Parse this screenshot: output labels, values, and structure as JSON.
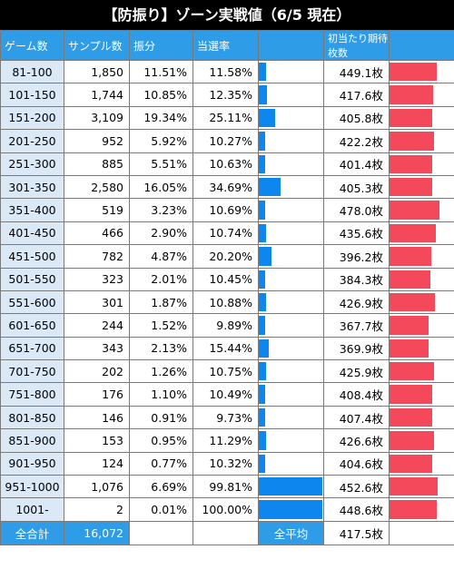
{
  "title": "【防振り】ゾーン実戦値（6/5 現在）",
  "headers": [
    "ゲーム数",
    "サンプル数",
    "振分",
    "当選率",
    "",
    "初当たり期待枚数",
    ""
  ],
  "colors": {
    "header_bg": "#2f9ce8",
    "zone_bg": "#dbe9f7",
    "rate_bar": "#0d86ee",
    "payout_bar": "#f3495a"
  },
  "rows": [
    {
      "zone": "81-100",
      "samples": "1,850",
      "ratio": "11.51%",
      "rate": "11.58%",
      "rate_value": 11.58,
      "payout": "449.1枚",
      "payout_value": 449.1
    },
    {
      "zone": "101-150",
      "samples": "1,744",
      "ratio": "10.85%",
      "rate": "12.35%",
      "rate_value": 12.35,
      "payout": "417.6枚",
      "payout_value": 417.6
    },
    {
      "zone": "151-200",
      "samples": "3,109",
      "ratio": "19.34%",
      "rate": "25.11%",
      "rate_value": 25.11,
      "payout": "405.8枚",
      "payout_value": 405.8
    },
    {
      "zone": "201-250",
      "samples": "952",
      "ratio": "5.92%",
      "rate": "10.27%",
      "rate_value": 10.27,
      "payout": "422.2枚",
      "payout_value": 422.2
    },
    {
      "zone": "251-300",
      "samples": "885",
      "ratio": "5.51%",
      "rate": "10.63%",
      "rate_value": 10.63,
      "payout": "401.4枚",
      "payout_value": 401.4
    },
    {
      "zone": "301-350",
      "samples": "2,580",
      "ratio": "16.05%",
      "rate": "34.69%",
      "rate_value": 34.69,
      "payout": "405.3枚",
      "payout_value": 405.3
    },
    {
      "zone": "351-400",
      "samples": "519",
      "ratio": "3.23%",
      "rate": "10.69%",
      "rate_value": 10.69,
      "payout": "478.0枚",
      "payout_value": 478.0
    },
    {
      "zone": "401-450",
      "samples": "466",
      "ratio": "2.90%",
      "rate": "10.74%",
      "rate_value": 10.74,
      "payout": "435.6枚",
      "payout_value": 435.6
    },
    {
      "zone": "451-500",
      "samples": "782",
      "ratio": "4.87%",
      "rate": "20.20%",
      "rate_value": 20.2,
      "payout": "396.2枚",
      "payout_value": 396.2
    },
    {
      "zone": "501-550",
      "samples": "323",
      "ratio": "2.01%",
      "rate": "10.45%",
      "rate_value": 10.45,
      "payout": "384.3枚",
      "payout_value": 384.3
    },
    {
      "zone": "551-600",
      "samples": "301",
      "ratio": "1.87%",
      "rate": "10.88%",
      "rate_value": 10.88,
      "payout": "426.9枚",
      "payout_value": 426.9
    },
    {
      "zone": "601-650",
      "samples": "244",
      "ratio": "1.52%",
      "rate": "9.89%",
      "rate_value": 9.89,
      "payout": "367.7枚",
      "payout_value": 367.7
    },
    {
      "zone": "651-700",
      "samples": "343",
      "ratio": "2.13%",
      "rate": "15.44%",
      "rate_value": 15.44,
      "payout": "369.9枚",
      "payout_value": 369.9
    },
    {
      "zone": "701-750",
      "samples": "202",
      "ratio": "1.26%",
      "rate": "10.75%",
      "rate_value": 10.75,
      "payout": "425.9枚",
      "payout_value": 425.9
    },
    {
      "zone": "751-800",
      "samples": "176",
      "ratio": "1.10%",
      "rate": "10.49%",
      "rate_value": 10.49,
      "payout": "408.4枚",
      "payout_value": 408.4
    },
    {
      "zone": "801-850",
      "samples": "146",
      "ratio": "0.91%",
      "rate": "9.73%",
      "rate_value": 9.73,
      "payout": "407.4枚",
      "payout_value": 407.4
    },
    {
      "zone": "851-900",
      "samples": "153",
      "ratio": "0.95%",
      "rate": "11.29%",
      "rate_value": 11.29,
      "payout": "426.6枚",
      "payout_value": 426.6
    },
    {
      "zone": "901-950",
      "samples": "124",
      "ratio": "0.77%",
      "rate": "10.32%",
      "rate_value": 10.32,
      "payout": "404.6枚",
      "payout_value": 404.6
    },
    {
      "zone": "951-1000",
      "samples": "1,076",
      "ratio": "6.69%",
      "rate": "99.81%",
      "rate_value": 99.81,
      "payout": "452.6枚",
      "payout_value": 452.6
    },
    {
      "zone": "1001-",
      "samples": "2",
      "ratio": "0.01%",
      "rate": "100.00%",
      "rate_value": 100.0,
      "payout": "448.6枚",
      "payout_value": 448.6
    }
  ],
  "totals": {
    "total_label": "全合計",
    "total_samples": "16,072",
    "average_label": "全平均",
    "average_payout": "417.5枚"
  }
}
